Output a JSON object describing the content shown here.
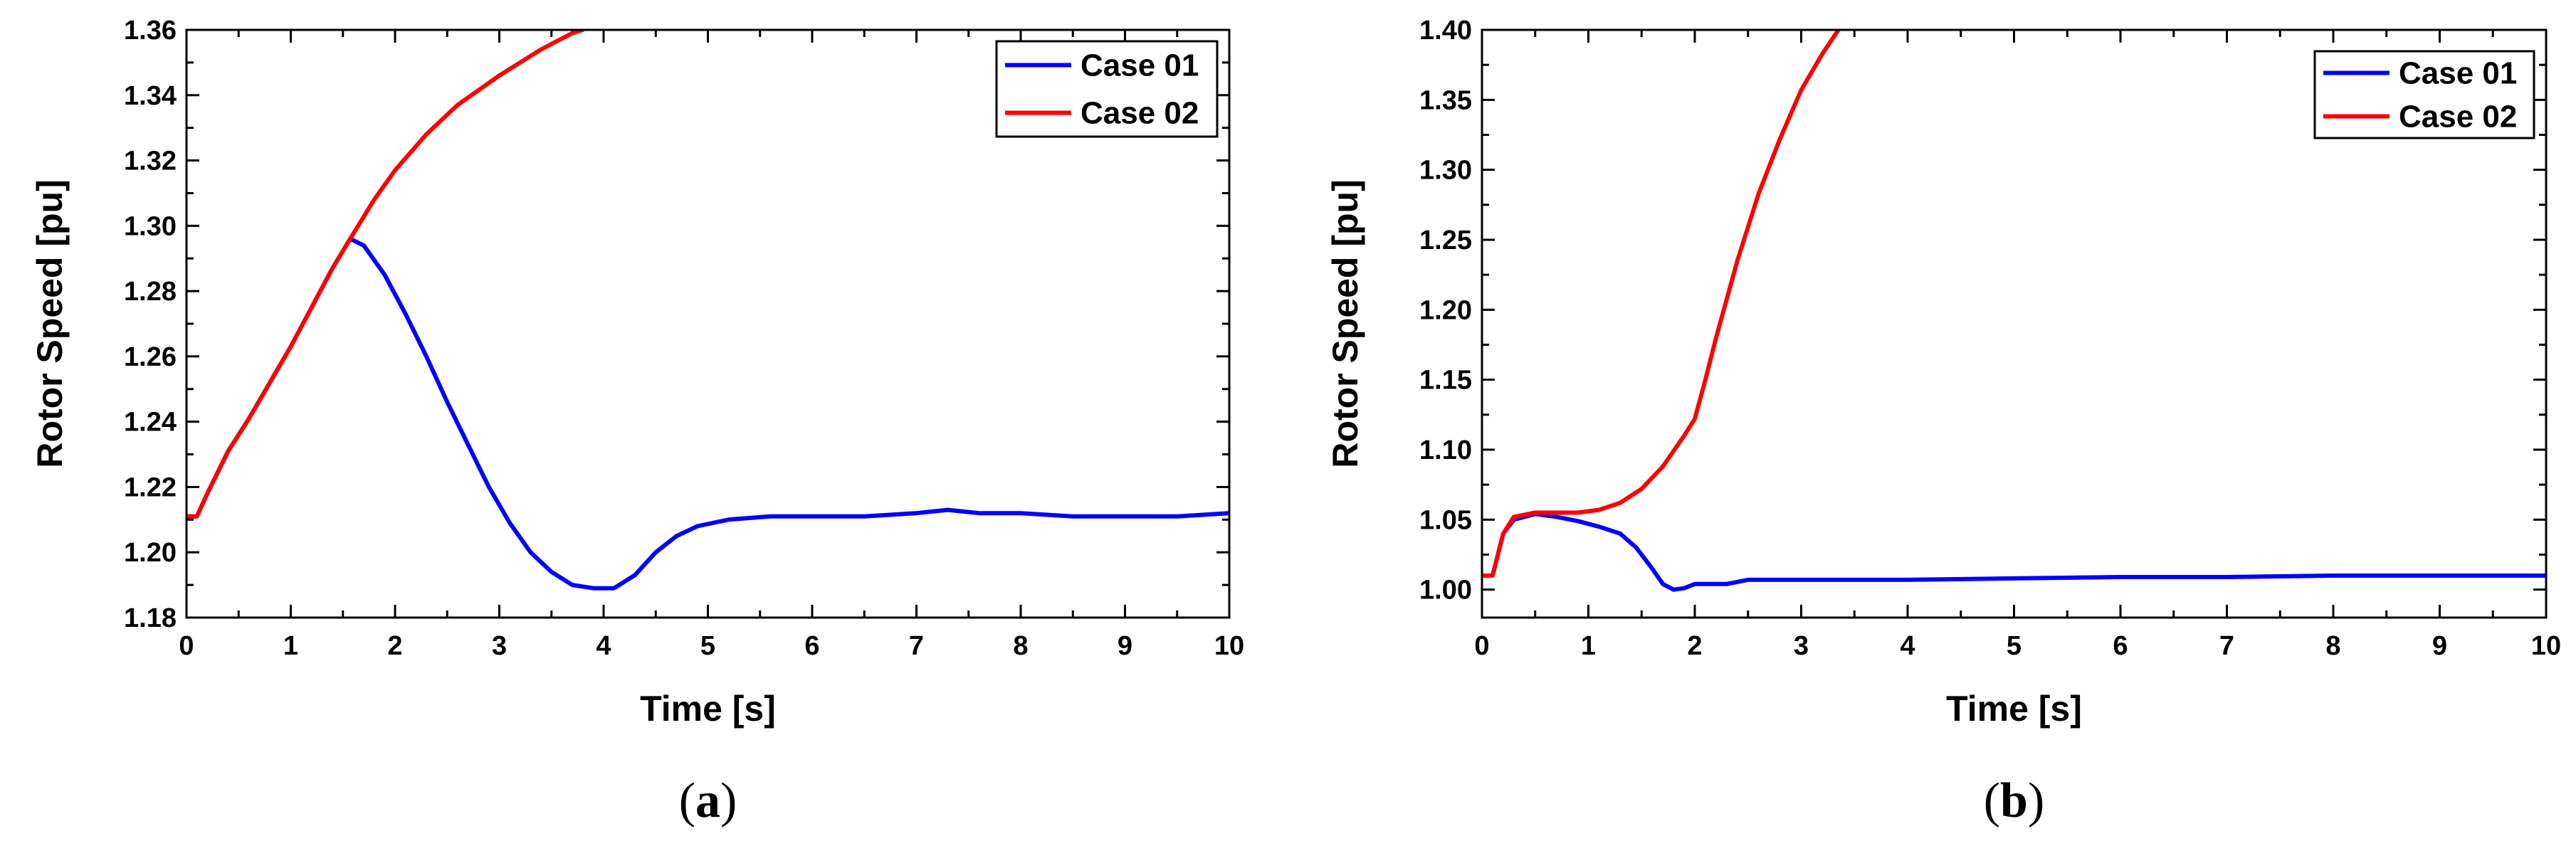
{
  "colors": {
    "case01": "#0000ff",
    "case02": "#ff0000",
    "axis": "#000000"
  },
  "chart_data": [
    {
      "type": "line",
      "panel_label_open": "(",
      "panel_label_letter": "a",
      "panel_label_close": ")",
      "xlabel": "Time [s]",
      "ylabel": "Rotor Speed [pu]",
      "xlim": [
        0,
        10
      ],
      "ylim": [
        1.18,
        1.36
      ],
      "xticks": [
        0,
        1,
        2,
        3,
        4,
        5,
        6,
        7,
        8,
        9,
        10
      ],
      "xtick_labels": [
        "0",
        "1",
        "2",
        "3",
        "4",
        "5",
        "6",
        "7",
        "8",
        "9",
        "10"
      ],
      "yticks": [
        1.18,
        1.2,
        1.22,
        1.24,
        1.26,
        1.28,
        1.3,
        1.32,
        1.34,
        1.36
      ],
      "ytick_labels": [
        "1.18",
        "1.20",
        "1.22",
        "1.24",
        "1.26",
        "1.28",
        "1.30",
        "1.32",
        "1.34",
        "1.36"
      ],
      "legend_position": "top-right",
      "grid": false,
      "series": [
        {
          "name": "Case 01",
          "color": "#0000ff",
          "points": [
            [
              0,
              1.211
            ],
            [
              0.1,
              1.211
            ],
            [
              0.2,
              1.218
            ],
            [
              0.4,
              1.231
            ],
            [
              0.6,
              1.241
            ],
            [
              0.8,
              1.252
            ],
            [
              1.0,
              1.263
            ],
            [
              1.2,
              1.275
            ],
            [
              1.4,
              1.287
            ],
            [
              1.57,
              1.296
            ],
            [
              1.7,
              1.294
            ],
            [
              1.9,
              1.285
            ],
            [
              2.1,
              1.273
            ],
            [
              2.3,
              1.26
            ],
            [
              2.5,
              1.246
            ],
            [
              2.7,
              1.233
            ],
            [
              2.9,
              1.22
            ],
            [
              3.1,
              1.209
            ],
            [
              3.3,
              1.2
            ],
            [
              3.5,
              1.194
            ],
            [
              3.7,
              1.19
            ],
            [
              3.9,
              1.189
            ],
            [
              4.1,
              1.189
            ],
            [
              4.3,
              1.193
            ],
            [
              4.5,
              1.2
            ],
            [
              4.7,
              1.205
            ],
            [
              4.9,
              1.208
            ],
            [
              5.2,
              1.21
            ],
            [
              5.6,
              1.211
            ],
            [
              6.0,
              1.211
            ],
            [
              6.5,
              1.211
            ],
            [
              7.0,
              1.212
            ],
            [
              7.3,
              1.213
            ],
            [
              7.6,
              1.212
            ],
            [
              8.0,
              1.212
            ],
            [
              8.5,
              1.211
            ],
            [
              9.0,
              1.211
            ],
            [
              9.5,
              1.211
            ],
            [
              10.0,
              1.212
            ]
          ]
        },
        {
          "name": "Case 02",
          "color": "#ff0000",
          "points": [
            [
              0,
              1.211
            ],
            [
              0.1,
              1.211
            ],
            [
              0.2,
              1.218
            ],
            [
              0.4,
              1.231
            ],
            [
              0.6,
              1.241
            ],
            [
              0.8,
              1.252
            ],
            [
              1.0,
              1.263
            ],
            [
              1.2,
              1.275
            ],
            [
              1.4,
              1.287
            ],
            [
              1.57,
              1.296
            ],
            [
              1.8,
              1.308
            ],
            [
              2.0,
              1.317
            ],
            [
              2.3,
              1.328
            ],
            [
              2.6,
              1.337
            ],
            [
              3.0,
              1.346
            ],
            [
              3.4,
              1.354
            ],
            [
              3.7,
              1.359
            ],
            [
              3.8,
              1.36
            ]
          ]
        }
      ]
    },
    {
      "type": "line",
      "panel_label_open": "(",
      "panel_label_letter": "b",
      "panel_label_close": ")",
      "xlabel": "Time [s]",
      "ylabel": "Rotor Speed [pu]",
      "xlim": [
        0,
        10
      ],
      "ylim": [
        0.98,
        1.4
      ],
      "xticks": [
        0,
        1,
        2,
        3,
        4,
        5,
        6,
        7,
        8,
        9,
        10
      ],
      "xtick_labels": [
        "0",
        "1",
        "2",
        "3",
        "4",
        "5",
        "6",
        "7",
        "8",
        "9",
        "10"
      ],
      "yticks": [
        1.0,
        1.05,
        1.1,
        1.15,
        1.2,
        1.25,
        1.3,
        1.35,
        1.4
      ],
      "ytick_labels": [
        "1.00",
        "1.05",
        "1.10",
        "1.15",
        "1.20",
        "1.25",
        "1.30",
        "1.35",
        "1.40"
      ],
      "legend_position": "top-right",
      "grid": false,
      "series": [
        {
          "name": "Case 01",
          "color": "#0000ff",
          "points": [
            [
              0,
              1.01
            ],
            [
              0.1,
              1.01
            ],
            [
              0.2,
              1.04
            ],
            [
              0.3,
              1.05
            ],
            [
              0.5,
              1.054
            ],
            [
              0.7,
              1.052
            ],
            [
              0.9,
              1.049
            ],
            [
              1.1,
              1.045
            ],
            [
              1.3,
              1.04
            ],
            [
              1.45,
              1.03
            ],
            [
              1.6,
              1.015
            ],
            [
              1.7,
              1.004
            ],
            [
              1.8,
              1.0
            ],
            [
              1.9,
              1.001
            ],
            [
              2.0,
              1.004
            ],
            [
              2.3,
              1.004
            ],
            [
              2.5,
              1.007
            ],
            [
              3.0,
              1.007
            ],
            [
              4.0,
              1.007
            ],
            [
              5.0,
              1.008
            ],
            [
              6.0,
              1.009
            ],
            [
              7.0,
              1.009
            ],
            [
              8.0,
              1.01
            ],
            [
              9.0,
              1.01
            ],
            [
              10.0,
              1.01
            ]
          ]
        },
        {
          "name": "Case 02",
          "color": "#ff0000",
          "points": [
            [
              0,
              1.01
            ],
            [
              0.1,
              1.01
            ],
            [
              0.2,
              1.04
            ],
            [
              0.3,
              1.052
            ],
            [
              0.5,
              1.055
            ],
            [
              0.7,
              1.055
            ],
            [
              0.9,
              1.055
            ],
            [
              1.1,
              1.057
            ],
            [
              1.3,
              1.062
            ],
            [
              1.5,
              1.072
            ],
            [
              1.7,
              1.088
            ],
            [
              1.9,
              1.11
            ],
            [
              2.0,
              1.122
            ],
            [
              2.1,
              1.15
            ],
            [
              2.2,
              1.18
            ],
            [
              2.4,
              1.235
            ],
            [
              2.6,
              1.283
            ],
            [
              2.8,
              1.322
            ],
            [
              3.0,
              1.357
            ],
            [
              3.2,
              1.383
            ],
            [
              3.35,
              1.4
            ]
          ]
        }
      ]
    }
  ]
}
